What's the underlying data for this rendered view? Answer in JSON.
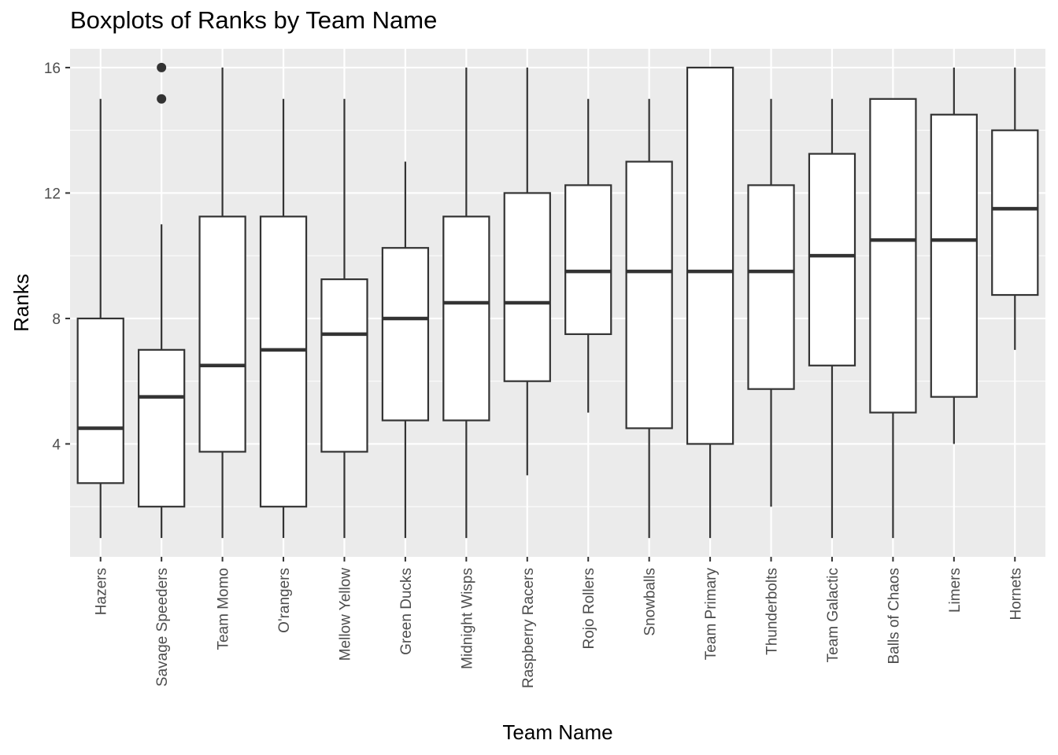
{
  "chart_data": {
    "type": "boxplot",
    "title": "Boxplots of Ranks by Team Name",
    "xlabel": "Team Name",
    "ylabel": "Ranks",
    "ylim": [
      0.4,
      16.6
    ],
    "yticks": [
      4,
      8,
      12,
      16
    ],
    "grid": true,
    "categories": [
      "Hazers",
      "Savage Speeders",
      "Team Momo",
      "O'rangers",
      "Mellow Yellow",
      "Green Ducks",
      "Midnight Wisps",
      "Raspberry Racers",
      "Rojo Rollers",
      "Snowballs",
      "Team Primary",
      "Thunderbolts",
      "Team Galactic",
      "Balls of Chaos",
      "Limers",
      "Hornets"
    ],
    "boxes": [
      {
        "min": 1,
        "q1": 2.75,
        "median": 4.5,
        "q3": 8,
        "max": 15,
        "outliers": []
      },
      {
        "min": 1,
        "q1": 2,
        "median": 5.5,
        "q3": 7,
        "max": 11,
        "outliers": [
          15,
          16
        ]
      },
      {
        "min": 1,
        "q1": 3.75,
        "median": 6.5,
        "q3": 11.25,
        "max": 16,
        "outliers": []
      },
      {
        "min": 1,
        "q1": 2,
        "median": 7,
        "q3": 11.25,
        "max": 15,
        "outliers": []
      },
      {
        "min": 1,
        "q1": 3.75,
        "median": 7.5,
        "q3": 9.25,
        "max": 15,
        "outliers": []
      },
      {
        "min": 1,
        "q1": 4.75,
        "median": 8,
        "q3": 10.25,
        "max": 13,
        "outliers": []
      },
      {
        "min": 1,
        "q1": 4.75,
        "median": 8.5,
        "q3": 11.25,
        "max": 16,
        "outliers": []
      },
      {
        "min": 3,
        "q1": 6,
        "median": 8.5,
        "q3": 12,
        "max": 16,
        "outliers": []
      },
      {
        "min": 5,
        "q1": 7.5,
        "median": 9.5,
        "q3": 12.25,
        "max": 15,
        "outliers": []
      },
      {
        "min": 1,
        "q1": 4.5,
        "median": 9.5,
        "q3": 13,
        "max": 15,
        "outliers": []
      },
      {
        "min": 1,
        "q1": 4,
        "median": 9.5,
        "q3": 16,
        "max": 16,
        "outliers": []
      },
      {
        "min": 2,
        "q1": 5.75,
        "median": 9.5,
        "q3": 12.25,
        "max": 15,
        "outliers": []
      },
      {
        "min": 1,
        "q1": 6.5,
        "median": 10,
        "q3": 13.25,
        "max": 15,
        "outliers": []
      },
      {
        "min": 1,
        "q1": 5,
        "median": 10.5,
        "q3": 15,
        "max": 15,
        "outliers": []
      },
      {
        "min": 4,
        "q1": 5.5,
        "median": 10.5,
        "q3": 14.5,
        "max": 16,
        "outliers": []
      },
      {
        "min": 7,
        "q1": 8.75,
        "median": 11.5,
        "q3": 14,
        "max": 16,
        "outliers": []
      }
    ],
    "colors": {
      "panel": "#ebebeb",
      "grid": "#ffffff",
      "box_fill": "#ffffff",
      "box_line": "#333333",
      "text": "#4d4d4d"
    }
  }
}
